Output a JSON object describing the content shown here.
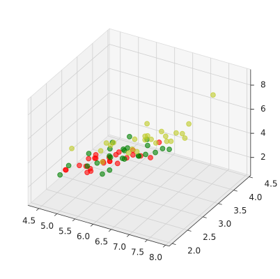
{
  "chart_data": {
    "type": "scatter3d",
    "xlim": [
      4.2,
      8.1
    ],
    "ylim": [
      1.9,
      4.55
    ],
    "zlim": [
      0.5,
      9.3
    ],
    "xticks": [
      4.5,
      {
        "value": 5,
        "label": "5.0"
      },
      5.5,
      {
        "value": 6,
        "label": "6.0"
      },
      6.5,
      {
        "value": 7,
        "label": "7.0"
      },
      7.5,
      {
        "value": 8,
        "label": "8.0"
      }
    ],
    "yticks": [
      {
        "value": 2,
        "label": "2.0"
      },
      2.5,
      {
        "value": 3,
        "label": "3.0"
      },
      3.5,
      {
        "value": 4,
        "label": "4.0"
      },
      4.5
    ],
    "zticks": [
      2,
      4,
      6,
      8
    ],
    "grid": true,
    "series": [
      {
        "color": "#ff0000",
        "x": [
          5.1,
          4.9,
          4.7,
          4.6,
          5.0,
          5.4,
          4.6,
          5.0,
          4.4,
          4.9,
          5.4,
          4.8,
          4.3,
          5.8,
          5.7,
          5.4,
          5.1,
          5.7,
          5.1,
          5.4,
          5.1,
          4.6,
          5.1,
          4.8,
          5.0
        ],
        "y": [
          3.5,
          3.0,
          3.2,
          3.1,
          3.6,
          3.9,
          3.4,
          3.4,
          2.9,
          3.1,
          3.7,
          3.4,
          3.0,
          4.0,
          4.4,
          3.9,
          3.5,
          3.8,
          3.8,
          3.4,
          3.7,
          3.6,
          3.3,
          3.4,
          3.0
        ],
        "z": [
          1.4,
          1.4,
          1.3,
          1.5,
          1.4,
          1.7,
          1.4,
          1.5,
          1.4,
          1.5,
          1.5,
          1.6,
          1.1,
          1.2,
          1.5,
          1.3,
          1.4,
          1.7,
          1.5,
          1.7,
          1.5,
          1.0,
          1.7,
          1.9,
          1.6
        ]
      },
      {
        "color": "#008000",
        "x": [
          7.0,
          6.4,
          6.9,
          5.5,
          6.5,
          5.7,
          6.3,
          4.9,
          6.6,
          5.2,
          5.0,
          5.9,
          6.0,
          6.1,
          5.6,
          6.7,
          5.6,
          5.8,
          6.2,
          5.6,
          5.9,
          6.1,
          6.3,
          6.1,
          6.4
        ],
        "y": [
          3.2,
          3.2,
          3.1,
          2.3,
          2.8,
          2.8,
          3.3,
          2.4,
          2.9,
          2.7,
          2.0,
          3.0,
          2.2,
          2.9,
          2.9,
          3.1,
          3.0,
          2.7,
          2.2,
          2.5,
          3.2,
          2.8,
          2.5,
          2.8,
          2.9
        ],
        "z": [
          4.7,
          4.5,
          4.9,
          4.0,
          4.6,
          4.5,
          4.7,
          3.3,
          4.6,
          3.9,
          3.5,
          4.2,
          4.0,
          4.7,
          3.6,
          4.4,
          4.5,
          4.1,
          4.5,
          3.9,
          4.8,
          4.0,
          4.9,
          4.7,
          4.3
        ]
      },
      {
        "color": "#bfcc2a",
        "x": [
          6.3,
          5.8,
          7.1,
          6.3,
          6.5,
          7.6,
          4.9,
          7.3,
          6.7,
          7.2,
          6.5,
          6.4,
          6.8,
          5.7,
          5.8,
          6.4,
          6.5,
          7.7,
          7.7,
          6.0,
          6.9,
          5.6,
          7.7,
          6.3,
          6.7
        ],
        "y": [
          3.3,
          2.7,
          3.0,
          2.9,
          3.0,
          3.0,
          2.5,
          2.9,
          2.5,
          3.6,
          3.2,
          2.7,
          3.0,
          2.5,
          2.8,
          3.2,
          3.0,
          3.8,
          2.6,
          2.2,
          3.2,
          2.8,
          2.8,
          2.7,
          3.3
        ],
        "z": [
          6.0,
          5.1,
          5.9,
          5.6,
          5.8,
          6.6,
          4.5,
          6.3,
          5.8,
          6.1,
          5.1,
          5.3,
          5.5,
          5.0,
          5.1,
          5.3,
          5.5,
          8.5,
          8.0,
          5.0,
          5.7,
          4.9,
          7.5,
          4.9,
          5.7
        ]
      }
    ]
  }
}
